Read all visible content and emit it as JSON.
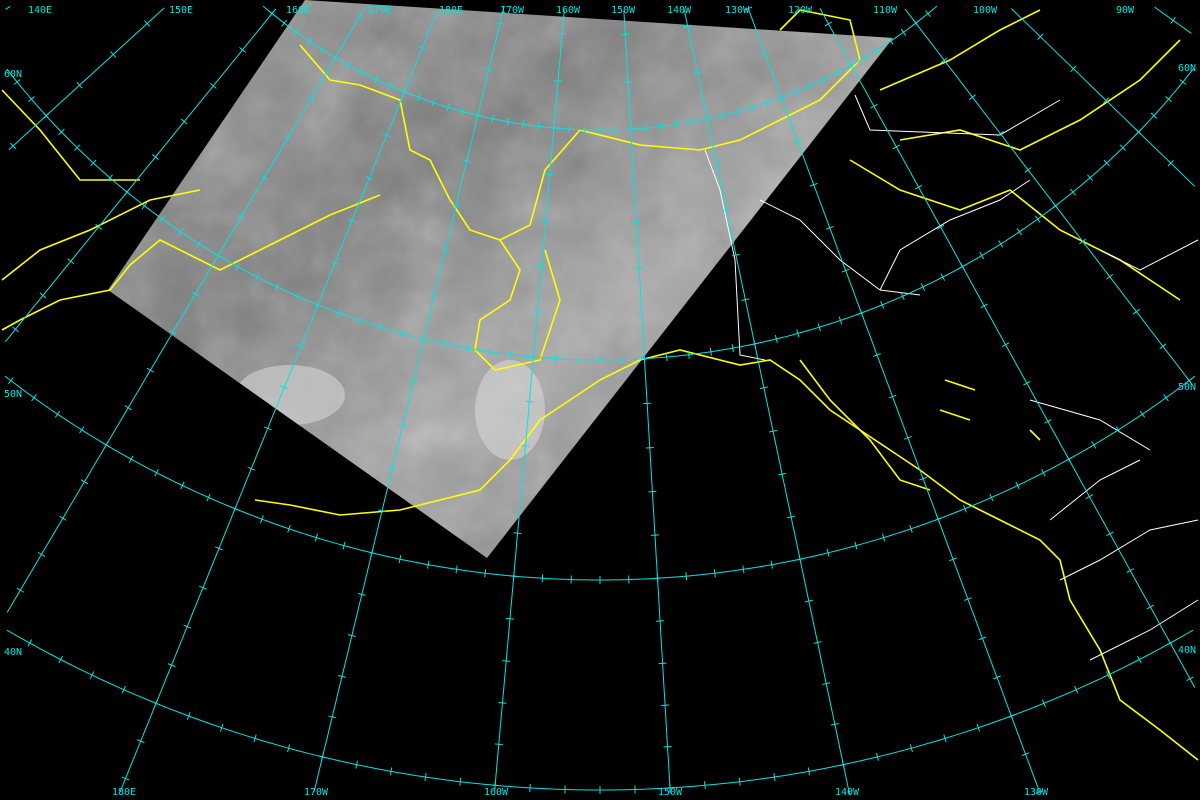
{
  "map": {
    "projection": "lambert-conformal",
    "colors": {
      "background": "#000000",
      "graticule": "#00e5e5",
      "coastline": "#ffff00",
      "borders": "#ffffff",
      "imagery": "#8c8c8c"
    },
    "top_labels": [
      "140E",
      "150E",
      "160E",
      "170E",
      "180E",
      "170W",
      "160W",
      "150W",
      "140W",
      "130W",
      "120W",
      "110W",
      "100W",
      "90W"
    ],
    "bottom_labels": [
      "180E",
      "170W",
      "160W",
      "150W",
      "140W",
      "130W"
    ],
    "left_labels": [
      "60N",
      "50N",
      "40N"
    ],
    "right_labels": [
      "60N",
      "50N",
      "40N"
    ]
  }
}
